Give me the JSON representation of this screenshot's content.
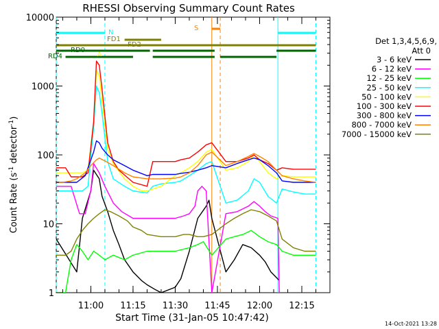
{
  "chart_data": {
    "type": "line",
    "title": "RHESSI Observing Summary Count Rates",
    "xlabel": "Start Time (31-Jan-05 10:47:42)",
    "ylabel_main": "Count Rate (s",
    "ylabel_sup1": "-1",
    "ylabel_mid": " detector",
    "ylabel_sup2": "-1",
    "ylabel_end": ")",
    "y_scale": "log",
    "xlim": [
      "10:47:42",
      "12:25:00"
    ],
    "ylim": [
      1,
      10000
    ],
    "x_ticks": [
      "11:00",
      "11:15",
      "11:30",
      "11:45",
      "12:00",
      "12:15"
    ],
    "x_ticks_min": [
      60,
      75,
      90,
      105,
      120,
      135
    ],
    "y_ticks": [
      {
        "value": 1,
        "label": "1"
      },
      {
        "value": 10,
        "label": "10"
      },
      {
        "value": 100,
        "label": "100"
      },
      {
        "value": 1000,
        "label": "1000"
      },
      {
        "value": 10000,
        "label": "10000"
      }
    ],
    "legend_title_1": "Det 1,3,4,5,6,9,",
    "legend_title_2": "Att 0",
    "legend_position": "right",
    "timestamp": "14-Oct-2021 13:28",
    "series": [
      {
        "name": "3 - 6 keV",
        "color": "#000000",
        "x": [
          47.7,
          55,
          57,
          60,
          61,
          63,
          64,
          66,
          68,
          70,
          72,
          75,
          78,
          80,
          83,
          85,
          90,
          92,
          95,
          98,
          101,
          102,
          103,
          108,
          111,
          114,
          117,
          120,
          122,
          124,
          127
        ],
        "y": [
          6,
          2,
          12,
          30,
          60,
          45,
          25,
          15,
          8,
          5,
          3,
          2,
          1.5,
          1.3,
          1.1,
          1,
          1.2,
          1.6,
          4,
          12,
          18,
          22,
          12,
          2,
          3,
          5,
          4.5,
          3.5,
          2.8,
          2,
          1.5
        ]
      },
      {
        "name": "6 - 12 keV",
        "color": "#ff00ff",
        "x": [
          47.7,
          53,
          56,
          58,
          60,
          61,
          63,
          65,
          68,
          71,
          75,
          80,
          85,
          90,
          93,
          95,
          97,
          98,
          99.5,
          101,
          103,
          108,
          112,
          116,
          118,
          120,
          122,
          124,
          126.5,
          127
        ],
        "y": [
          35,
          35,
          14,
          14,
          30,
          75,
          55,
          35,
          20,
          15,
          12,
          12,
          12,
          12,
          13,
          14,
          18,
          30,
          35,
          30,
          1,
          14,
          15,
          18,
          21,
          18,
          15,
          13,
          12,
          1
        ]
      },
      {
        "name": "12 - 25 keV",
        "color": "#00ff00",
        "x": [
          47.7,
          51,
          53,
          55,
          57,
          59,
          61,
          63,
          65,
          68,
          72,
          75,
          80,
          85,
          90,
          95,
          98,
          100,
          103,
          108,
          111,
          114,
          117,
          120,
          123,
          126,
          128,
          132,
          135,
          140
        ],
        "y": [
          1,
          1,
          3,
          5,
          4,
          3,
          4,
          3.5,
          3,
          3.5,
          3,
          3.5,
          4,
          4,
          4,
          4.5,
          5,
          5.5,
          3.5,
          6,
          6.5,
          7,
          8,
          6.5,
          5.5,
          5,
          4,
          3.5,
          3.5,
          3.5
        ]
      },
      {
        "name": "25 - 50 keV",
        "color": "#00ffff",
        "x": [
          47.7,
          53,
          55,
          57,
          59,
          61,
          62,
          63,
          64,
          66,
          68,
          72,
          75,
          80,
          82,
          85,
          90,
          92,
          95,
          98,
          101,
          103,
          108,
          112,
          116,
          118,
          120,
          123,
          126,
          128,
          132,
          136,
          140
        ],
        "y": [
          30,
          30,
          30,
          30,
          35,
          250,
          1000,
          800,
          400,
          80,
          45,
          35,
          30,
          28,
          35,
          38,
          40,
          42,
          50,
          60,
          75,
          80,
          20,
          22,
          30,
          45,
          40,
          25,
          20,
          32,
          29,
          27,
          27
        ]
      },
      {
        "name": "50 - 100 keV",
        "color": "#ffff00",
        "x": [
          47.7,
          53,
          55,
          57,
          59,
          61,
          62,
          63,
          64,
          66,
          68,
          72,
          75,
          78,
          80,
          85,
          90,
          92,
          95,
          98,
          101,
          103,
          108,
          112,
          116,
          118,
          120,
          123,
          126,
          128,
          132,
          136,
          140
        ],
        "y": [
          55,
          55,
          55,
          55,
          60,
          300,
          1700,
          1400,
          600,
          120,
          75,
          45,
          35,
          30,
          30,
          35,
          50,
          55,
          65,
          80,
          110,
          120,
          60,
          65,
          80,
          100,
          80,
          55,
          45,
          50,
          48,
          48,
          48
        ]
      },
      {
        "name": "100 - 300 keV",
        "color": "#ff0000",
        "x": [
          47.7,
          51,
          53,
          55,
          57,
          59,
          61,
          62,
          63,
          64,
          66,
          68,
          70,
          75,
          80,
          82,
          85,
          90,
          92,
          95,
          98,
          101,
          103,
          108,
          112,
          116,
          118,
          120,
          123,
          126,
          128,
          132,
          136,
          140
        ],
        "y": [
          65,
          65,
          48,
          48,
          48,
          55,
          300,
          2300,
          2000,
          900,
          150,
          80,
          60,
          40,
          35,
          80,
          80,
          80,
          85,
          90,
          110,
          140,
          150,
          80,
          80,
          90,
          100,
          85,
          75,
          60,
          65,
          62,
          62,
          62
        ]
      },
      {
        "name": "300 - 800 keV",
        "color": "#0000ff",
        "x": [
          47.7,
          51,
          55,
          58,
          61,
          62,
          63,
          64,
          66,
          68,
          72,
          75,
          80,
          82,
          85,
          90,
          92,
          95,
          98,
          101,
          103,
          108,
          112,
          116,
          118,
          120,
          123,
          126,
          128,
          132,
          136,
          140
        ],
        "y": [
          40,
          40,
          40,
          50,
          110,
          160,
          150,
          125,
          100,
          85,
          70,
          60,
          50,
          52,
          52,
          52,
          54,
          56,
          60,
          65,
          70,
          65,
          75,
          85,
          90,
          85,
          70,
          55,
          42,
          40,
          40,
          40
        ]
      },
      {
        "name": "800 - 7000 keV",
        "color": "#ff8000",
        "x": [
          47.7,
          50,
          53,
          55,
          58,
          60,
          62,
          63,
          65,
          68,
          72,
          75,
          80,
          82,
          85,
          90,
          92,
          95,
          98,
          101,
          103,
          108,
          112,
          116,
          118,
          120,
          123,
          126,
          128,
          132,
          136,
          140
        ],
        "y": [
          40,
          40,
          42,
          45,
          55,
          70,
          85,
          90,
          82,
          70,
          55,
          48,
          45,
          45,
          45,
          46,
          48,
          55,
          70,
          100,
          110,
          70,
          80,
          95,
          105,
          95,
          80,
          60,
          50,
          45,
          42,
          40
        ]
      },
      {
        "name": "7000 - 15000 keV",
        "color": "#808000",
        "x": [
          47.7,
          51,
          53,
          55,
          57,
          59,
          61,
          63,
          65,
          67,
          70,
          73,
          75,
          78,
          80,
          85,
          90,
          93,
          95,
          98,
          100,
          103,
          108,
          111,
          114,
          117,
          120,
          123,
          126,
          128,
          132,
          136,
          140
        ],
        "y": [
          3.5,
          3.5,
          4,
          6,
          8,
          10,
          12,
          14,
          16,
          15,
          13,
          11,
          9,
          8,
          7,
          6.5,
          6.5,
          7,
          7,
          6.5,
          6.5,
          7,
          10,
          12,
          14,
          16,
          15,
          13,
          11,
          6,
          4.5,
          4,
          4
        ]
      }
    ],
    "state_bars": [
      {
        "label": "N",
        "color": "#00ffff",
        "row": "N",
        "segments": [
          [
            47.7,
            65
          ],
          [
            126.5,
            140
          ]
        ]
      },
      {
        "label": "FD1",
        "color": "#808000",
        "row": "FD1",
        "segments": [
          [
            72,
            85
          ]
        ]
      },
      {
        "label": "FD2",
        "color": "#808000",
        "row": "FD2",
        "segments": [
          [
            47.7,
            140
          ]
        ]
      },
      {
        "label": "RD0",
        "color": "#006400",
        "row": "RD0",
        "segments": [
          [
            47.7,
            81
          ],
          [
            82,
            104
          ],
          [
            126,
            140
          ]
        ]
      },
      {
        "label": "RD4",
        "color": "#006400",
        "row": "RD4",
        "segments": [
          [
            51,
            75
          ],
          [
            82,
            104
          ],
          [
            106,
            126
          ]
        ]
      },
      {
        "label": "S",
        "color": "#ff8000",
        "row": "S",
        "segments": [
          [
            103,
            106
          ]
        ]
      }
    ],
    "vertical_markers": [
      {
        "x": 47.7,
        "color": "#00ffff",
        "style": "dashed"
      },
      {
        "x": 65,
        "color": "#00ffff",
        "style": "dashed"
      },
      {
        "x": 126.5,
        "color": "#00ffff",
        "style": "solid"
      },
      {
        "x": 140,
        "color": "#00ffff",
        "style": "dashed"
      },
      {
        "x": 103,
        "color": "#ff8000",
        "style": "solid"
      },
      {
        "x": 106,
        "color": "#ff8000",
        "style": "dashed"
      }
    ],
    "annotations": [
      {
        "label": "A",
        "x": 63
      }
    ]
  }
}
